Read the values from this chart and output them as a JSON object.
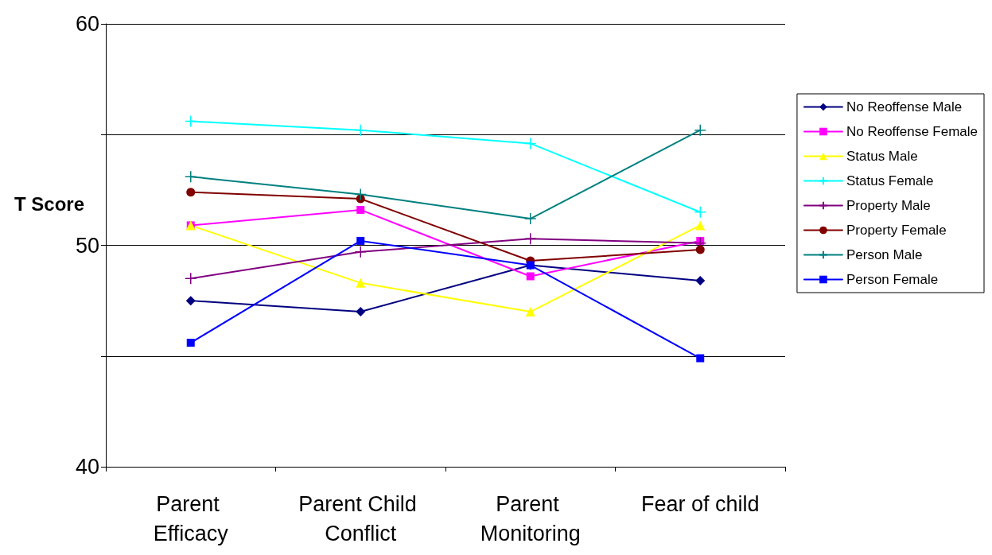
{
  "chart_data": {
    "type": "line",
    "ylabel": "T Score",
    "categories": [
      "Parent Efficacy",
      "Parent Child Conflict",
      "Parent Monitoring",
      "Fear of child"
    ],
    "ylim": [
      40,
      60
    ],
    "yticks": [
      40,
      {
        "value": 45,
        "label": null
      },
      50,
      {
        "value": 55,
        "label": null
      },
      60
    ],
    "grid": "y",
    "legend": "right",
    "line_style": "solid",
    "series": [
      {
        "name": "No Reoffense Male",
        "color": "#000080",
        "marker": "diamond",
        "values": [
          47.5,
          47.0,
          49.1,
          48.4
        ]
      },
      {
        "name": "No Reoffense Female",
        "color": "#ff00ff",
        "marker": "square",
        "values": [
          50.9,
          51.6,
          48.6,
          50.2
        ]
      },
      {
        "name": "Status Male",
        "color": "#ffff00",
        "marker": "triangle",
        "values": [
          50.9,
          48.3,
          47.0,
          50.9
        ]
      },
      {
        "name": "Status Female",
        "color": "#00ffff",
        "marker": "cross",
        "values": [
          55.6,
          55.2,
          54.6,
          51.5
        ]
      },
      {
        "name": "Property Male",
        "color": "#800080",
        "marker": "cross",
        "values": [
          48.5,
          49.7,
          50.3,
          50.1
        ]
      },
      {
        "name": "Property Female",
        "color": "#800000",
        "marker": "circle",
        "values": [
          52.4,
          52.1,
          49.3,
          49.8
        ]
      },
      {
        "name": "Person Male",
        "color": "#008080",
        "marker": "cross",
        "values": [
          53.1,
          52.3,
          51.2,
          55.2
        ]
      },
      {
        "name": "Person Female",
        "color": "#0000ff",
        "marker": "square",
        "values": [
          45.6,
          50.2,
          49.1,
          44.9
        ]
      }
    ]
  }
}
